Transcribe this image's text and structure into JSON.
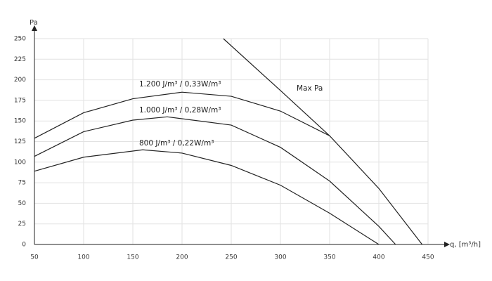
{
  "chart_data": {
    "type": "line",
    "y_label": "Pa",
    "x_label": "q, [m³/h]",
    "xlim": [
      50,
      450
    ],
    "xticks": [
      50,
      100,
      150,
      200,
      250,
      300,
      350,
      400,
      450
    ],
    "ylim": [
      0,
      250
    ],
    "yticks": [
      0,
      25,
      50,
      75,
      100,
      125,
      150,
      175,
      200,
      225,
      250
    ],
    "grid": true,
    "series": [
      {
        "name": "1.200 J/m³ / 0,33W/m³",
        "color": "#222222",
        "x": [
          50,
          100,
          150,
          200,
          250,
          300,
          350
        ],
        "values": [
          129,
          160,
          177,
          185,
          180,
          162,
          132
        ]
      },
      {
        "name": "1.000 J/m³ / 0,28W/m³",
        "color": "#222222",
        "x": [
          50,
          100,
          150,
          185,
          250,
          300,
          350,
          400,
          417
        ],
        "values": [
          107,
          137,
          151,
          155,
          145,
          118,
          77,
          22,
          0
        ]
      },
      {
        "name": "800 J/m³ / 0,22W/m³",
        "color": "#222222",
        "x": [
          50,
          100,
          160,
          200,
          250,
          300,
          350,
          400
        ],
        "values": [
          89,
          106,
          115,
          111,
          96,
          72,
          38,
          0
        ]
      },
      {
        "name": "Max Pa",
        "color": "#222222",
        "x": [
          242,
          300,
          350,
          400,
          444
        ],
        "values": [
          250,
          187,
          132,
          68,
          0
        ]
      }
    ]
  }
}
